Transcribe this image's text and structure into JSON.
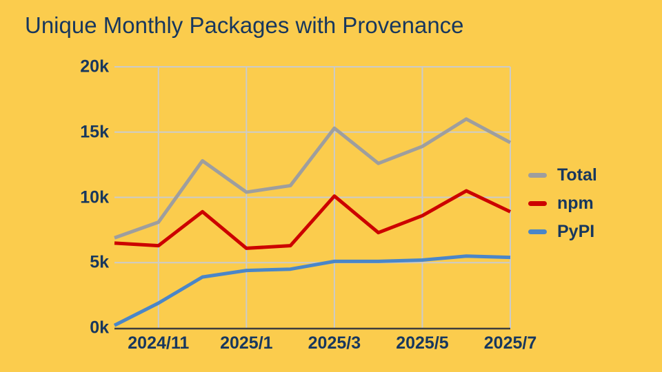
{
  "title": "Unique Monthly Packages with Provenance",
  "colors": {
    "background": "#FBCC4D",
    "title_text": "#17375E",
    "tick_text": "#17375E",
    "gridline": "#CBCBCB",
    "axis_line": "#3D3D3D",
    "total_series": "#9E9E9E",
    "npm_series": "#CC0000",
    "pypi_series": "#4A86C8"
  },
  "chart_data": {
    "type": "line",
    "title": "Unique Monthly Packages with Provenance",
    "x": [
      "2024/10",
      "2024/11",
      "2024/12",
      "2025/1",
      "2025/2",
      "2025/3",
      "2025/4",
      "2025/5",
      "2025/6",
      "2025/7"
    ],
    "x_tick_labels": [
      "2024/11",
      "2025/1",
      "2025/3",
      "2025/5",
      "2025/7"
    ],
    "y_tick_labels": [
      "20k",
      "15k",
      "10k",
      "5k",
      "0k"
    ],
    "ylim": [
      0,
      20000
    ],
    "grid": true,
    "legend_position": "right",
    "series": [
      {
        "name": "Total",
        "color": "#9E9E9E",
        "values": [
          6900,
          8100,
          12800,
          10400,
          10900,
          15300,
          12600,
          13900,
          16000,
          14200
        ]
      },
      {
        "name": "npm",
        "color": "#CC0000",
        "values": [
          6500,
          6300,
          8900,
          6100,
          6300,
          10100,
          7300,
          8600,
          10500,
          8900
        ]
      },
      {
        "name": "PyPI",
        "color": "#4A86C8",
        "values": [
          200,
          1900,
          3900,
          4400,
          4500,
          5100,
          5100,
          5200,
          5500,
          5400
        ]
      }
    ]
  }
}
